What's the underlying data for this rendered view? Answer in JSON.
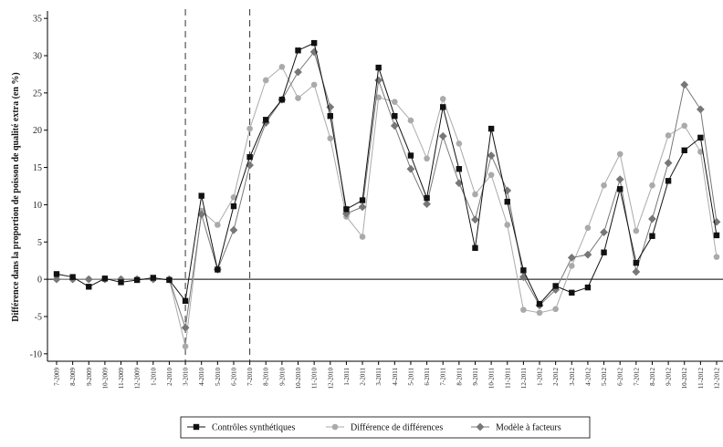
{
  "chart_data": {
    "type": "line",
    "title": "",
    "xlabel": "",
    "ylabel": "Différence dans la proportion de poisson de qualité extra (en %)",
    "ylim": [
      -11,
      36
    ],
    "yticks": [
      -10,
      -5,
      0,
      5,
      10,
      15,
      20,
      25,
      30,
      35
    ],
    "ytick_labels": [
      "-10",
      "-5",
      "0",
      "5",
      "10",
      "15",
      "20",
      "25",
      "30",
      "35"
    ],
    "grid": false,
    "legend_position": "bottom",
    "x": [
      "7-2009",
      "8-2009",
      "9-2009",
      "10-2009",
      "11-2009",
      "12-2009",
      "1-2010",
      "2-2010",
      "3-2010",
      "4-2010",
      "5-2010",
      "6-2010",
      "7-2010",
      "8-2010",
      "9-2010",
      "10-2010",
      "11-2010",
      "12-2010",
      "1-2011",
      "2-2011",
      "3-2011",
      "4-2011",
      "5-2011",
      "6-2011",
      "7-2011",
      "8-2011",
      "9-2011",
      "10-2011",
      "11-2011",
      "12-2011",
      "1-2012",
      "2-2012",
      "3-2012",
      "4-2012",
      "5-2012",
      "6-2012",
      "7-2012",
      "8-2012",
      "9-2012",
      "10-2012",
      "11-2012",
      "12-2012"
    ],
    "reference_lines": {
      "horizontal": [
        0
      ],
      "vertical_dashed": [
        "3-2010",
        "7-2010"
      ]
    },
    "series": [
      {
        "name": "Contrôles synthétiques",
        "color": "#111111",
        "marker": "square",
        "values": [
          0.7,
          0.3,
          -1.0,
          0.1,
          -0.4,
          -0.1,
          0.2,
          -0.1,
          -2.9,
          11.2,
          1.3,
          9.8,
          16.4,
          21.4,
          24.1,
          30.7,
          31.7,
          21.9,
          9.4,
          10.6,
          28.4,
          21.9,
          16.6,
          10.9,
          23.1,
          14.8,
          4.2,
          20.2,
          10.4,
          1.2,
          -3.3,
          -0.9,
          -1.8,
          -1.1,
          3.6,
          12.1,
          2.2,
          5.8,
          13.2,
          17.3,
          19.0,
          5.9
        ]
      },
      {
        "name": "Différence de différences",
        "color": "#aaaaaa",
        "marker": "circle",
        "values": [
          0.0,
          0.0,
          0.0,
          0.0,
          0.0,
          0.0,
          0.0,
          0.0,
          -9.0,
          9.2,
          7.3,
          11.0,
          20.2,
          26.7,
          28.5,
          24.3,
          26.1,
          18.9,
          8.4,
          5.7,
          24.4,
          23.8,
          21.3,
          16.2,
          24.2,
          18.2,
          11.4,
          14.0,
          7.3,
          -4.1,
          -4.5,
          -4.0,
          1.8,
          6.9,
          12.6,
          16.8,
          6.5,
          12.6,
          19.3,
          20.6,
          17.1,
          3.0
        ]
      },
      {
        "name": "Modèle à facteurs",
        "color": "#777777",
        "marker": "diamond",
        "values": [
          0.0,
          0.0,
          0.0,
          0.0,
          0.0,
          0.0,
          0.0,
          0.0,
          -6.5,
          8.7,
          1.3,
          6.6,
          15.3,
          21.0,
          24.1,
          27.8,
          30.5,
          23.1,
          8.8,
          9.7,
          26.7,
          20.6,
          14.8,
          10.1,
          19.2,
          12.9,
          8.0,
          16.6,
          11.9,
          0.3,
          -3.5,
          -1.4,
          2.9,
          3.3,
          6.3,
          13.4,
          1.0,
          8.1,
          15.6,
          26.1,
          22.8,
          7.7
        ]
      }
    ]
  }
}
